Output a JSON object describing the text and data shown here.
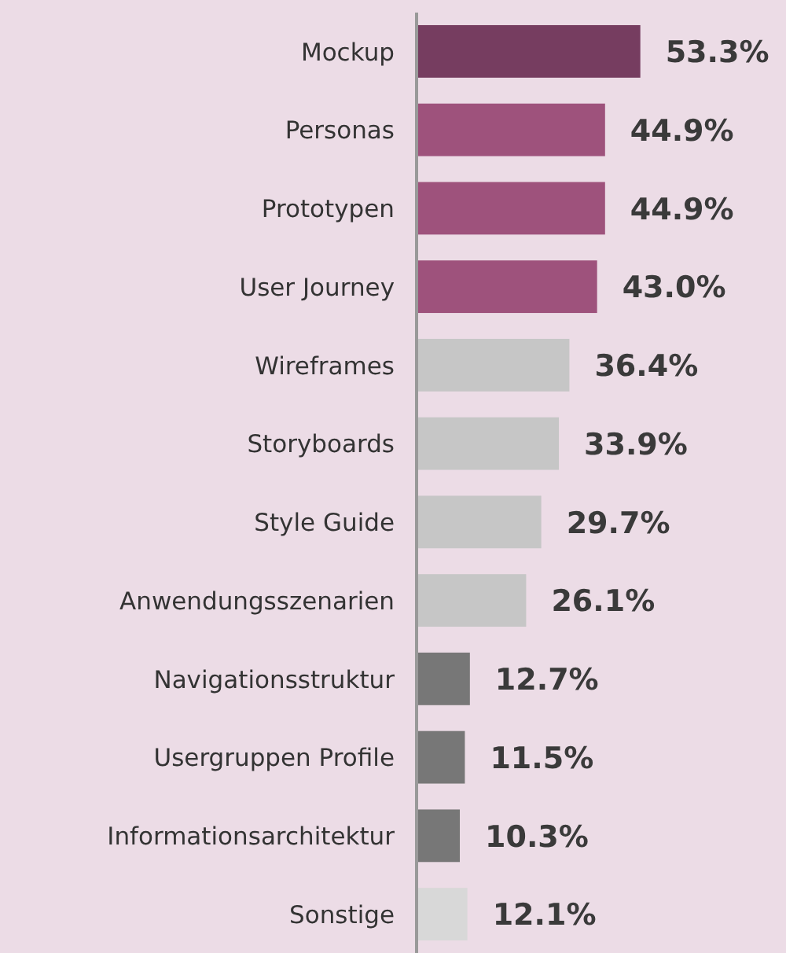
{
  "chart_data": {
    "type": "bar",
    "orientation": "horizontal",
    "categories": [
      "Mockup",
      "Personas",
      "Prototypen",
      "User Journey",
      "Wireframes",
      "Storyboards",
      "Style Guide",
      "Anwendungsszenarien",
      "Navigationsstruktur",
      "Usergruppen Profile",
      "Informationsarchitektur",
      "Sonstige"
    ],
    "values": [
      53.3,
      44.9,
      44.9,
      43.0,
      36.4,
      33.9,
      29.7,
      26.1,
      12.7,
      11.5,
      10.3,
      12.1
    ],
    "value_labels": [
      "53.3%",
      "44.9%",
      "44.9%",
      "43.0%",
      "36.4%",
      "33.9%",
      "29.7%",
      "26.1%",
      "12.7%",
      "11.5%",
      "10.3%",
      "12.1%"
    ],
    "colors": [
      "#763d60",
      "#9e527c",
      "#9e527c",
      "#9e527c",
      "#c6c6c6",
      "#c6c6c6",
      "#c6c6c6",
      "#c6c6c6",
      "#777777",
      "#777777",
      "#777777",
      "#d8d8d8"
    ],
    "xlim": [
      0,
      88
    ],
    "tick_labels": "y"
  }
}
